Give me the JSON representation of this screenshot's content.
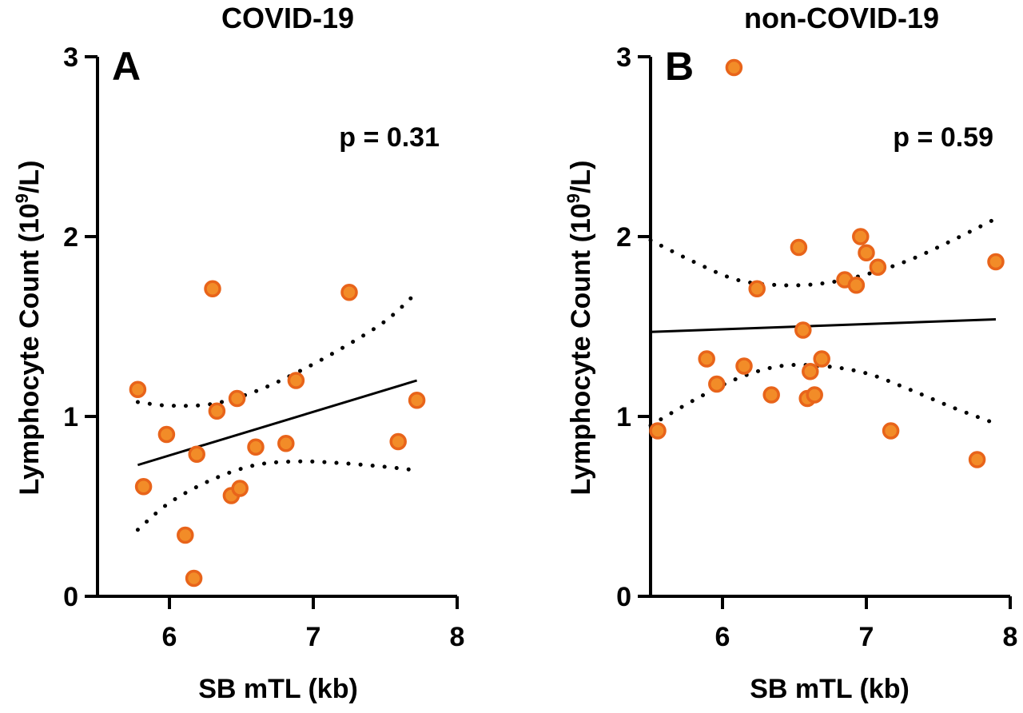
{
  "chart_data": [
    {
      "type": "scatter",
      "panel": "A",
      "title": "COVID-19",
      "annotation": "p = 0.31",
      "xlabel": "SB mTL (kb)",
      "ylabel": "Lymphocyte Count (10",
      "ylabel_sup": "9",
      "ylabel_tail": "/L)",
      "xlim": [
        5.5,
        8
      ],
      "ylim": [
        0,
        3
      ],
      "xticks": [
        6,
        7,
        8
      ],
      "yticks": [
        0,
        1,
        2,
        3
      ],
      "point_color": "#F28C28",
      "point_edge_color": "#E8641A",
      "points": [
        {
          "x": 5.78,
          "y": 1.15
        },
        {
          "x": 5.82,
          "y": 0.61
        },
        {
          "x": 5.98,
          "y": 0.9
        },
        {
          "x": 6.11,
          "y": 0.34
        },
        {
          "x": 6.17,
          "y": 0.1
        },
        {
          "x": 6.19,
          "y": 0.79
        },
        {
          "x": 6.3,
          "y": 1.71
        },
        {
          "x": 6.33,
          "y": 1.03
        },
        {
          "x": 6.43,
          "y": 0.56
        },
        {
          "x": 6.47,
          "y": 1.1
        },
        {
          "x": 6.49,
          "y": 0.6
        },
        {
          "x": 6.6,
          "y": 0.83
        },
        {
          "x": 6.81,
          "y": 0.85
        },
        {
          "x": 6.88,
          "y": 1.2
        },
        {
          "x": 7.25,
          "y": 1.69
        },
        {
          "x": 7.59,
          "y": 0.86
        },
        {
          "x": 7.72,
          "y": 1.09
        }
      ],
      "fit": {
        "x": [
          5.78,
          7.72
        ],
        "y": [
          0.73,
          1.2
        ]
      },
      "ci_upper": {
        "x": [
          5.78,
          6.0,
          6.3,
          6.6,
          6.9,
          7.2,
          7.5,
          7.72
        ],
        "y": [
          1.08,
          1.06,
          1.07,
          1.14,
          1.25,
          1.38,
          1.53,
          1.69
        ]
      },
      "ci_lower": {
        "x": [
          5.78,
          6.0,
          6.3,
          6.6,
          6.9,
          7.2,
          7.5,
          7.72
        ],
        "y": [
          0.37,
          0.52,
          0.65,
          0.73,
          0.75,
          0.74,
          0.72,
          0.7
        ]
      }
    },
    {
      "type": "scatter",
      "panel": "B",
      "title": "non-COVID-19",
      "annotation": "p = 0.59",
      "xlabel": "SB mTL (kb)",
      "ylabel": "Lymphocyte Count (10",
      "ylabel_sup": "9",
      "ylabel_tail": "/L)",
      "xlim": [
        5.5,
        8
      ],
      "ylim": [
        0,
        3
      ],
      "xticks": [
        6,
        7,
        8
      ],
      "yticks": [
        0,
        1,
        2,
        3
      ],
      "point_color": "#F28C28",
      "point_edge_color": "#E8641A",
      "points": [
        {
          "x": 5.55,
          "y": 0.92
        },
        {
          "x": 5.89,
          "y": 1.32
        },
        {
          "x": 5.96,
          "y": 1.18
        },
        {
          "x": 6.08,
          "y": 2.94
        },
        {
          "x": 6.15,
          "y": 1.28
        },
        {
          "x": 6.24,
          "y": 1.71
        },
        {
          "x": 6.34,
          "y": 1.12
        },
        {
          "x": 6.53,
          "y": 1.94
        },
        {
          "x": 6.56,
          "y": 1.48
        },
        {
          "x": 6.59,
          "y": 1.1
        },
        {
          "x": 6.61,
          "y": 1.25
        },
        {
          "x": 6.64,
          "y": 1.12
        },
        {
          "x": 6.69,
          "y": 1.32
        },
        {
          "x": 6.85,
          "y": 1.76
        },
        {
          "x": 6.93,
          "y": 1.73
        },
        {
          "x": 6.96,
          "y": 2.0
        },
        {
          "x": 7.0,
          "y": 1.91
        },
        {
          "x": 7.08,
          "y": 1.83
        },
        {
          "x": 7.17,
          "y": 0.92
        },
        {
          "x": 7.77,
          "y": 0.76
        },
        {
          "x": 7.9,
          "y": 1.86
        }
      ],
      "fit": {
        "x": [
          5.5,
          7.9
        ],
        "y": [
          1.47,
          1.54
        ]
      },
      "ci_upper": {
        "x": [
          5.5,
          5.8,
          6.1,
          6.4,
          6.7,
          7.0,
          7.3,
          7.6,
          7.9
        ],
        "y": [
          1.98,
          1.86,
          1.76,
          1.73,
          1.74,
          1.79,
          1.87,
          1.98,
          2.1
        ]
      },
      "ci_lower": {
        "x": [
          5.5,
          5.8,
          6.1,
          6.4,
          6.7,
          7.0,
          7.3,
          7.6,
          7.9
        ],
        "y": [
          0.95,
          1.09,
          1.21,
          1.28,
          1.28,
          1.24,
          1.15,
          1.05,
          0.96
        ]
      }
    }
  ]
}
